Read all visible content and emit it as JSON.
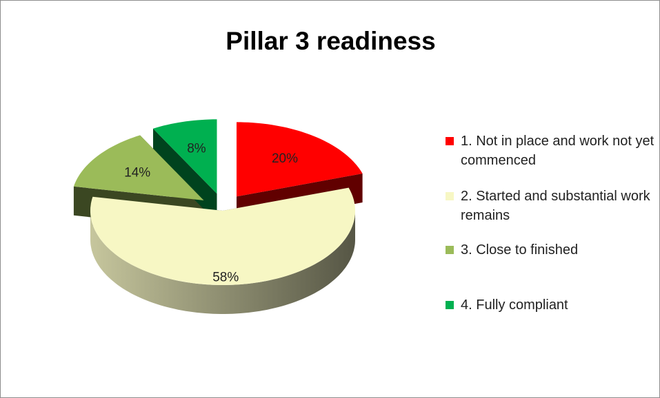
{
  "chart_data": {
    "type": "pie",
    "title": "Pillar 3 readiness",
    "categories": [
      "1. Not in place and work not yet commenced",
      "2. Started and substantial work remains",
      "3. Close to finished",
      "4. Fully compliant"
    ],
    "values": [
      20,
      58,
      14,
      8
    ],
    "value_labels": [
      "20%",
      "58%",
      "14%",
      "8%"
    ],
    "colors": [
      "#ff0000",
      "#f7f7c4",
      "#9bbb59",
      "#00b050"
    ],
    "legend": "right"
  }
}
